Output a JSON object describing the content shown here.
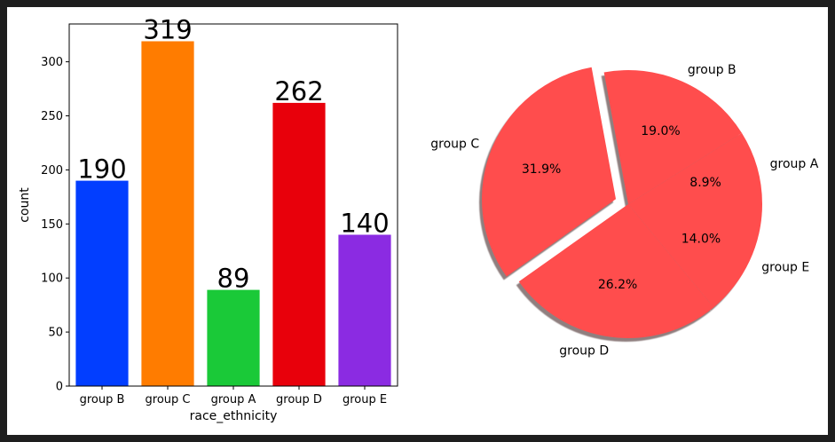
{
  "chart_data": [
    {
      "type": "bar",
      "categories": [
        "group B",
        "group C",
        "group A",
        "group D",
        "group E"
      ],
      "values": [
        190,
        319,
        89,
        262,
        140
      ],
      "data_labels": [
        "190",
        "319",
        "89",
        "262",
        "140"
      ],
      "colors": [
        "#023eff",
        "#ff7c00",
        "#1ac938",
        "#e8000b",
        "#8b2be2"
      ],
      "xlabel": "race_ethnicity",
      "ylabel": "count",
      "ylim": [
        0,
        335
      ],
      "yticks": [
        0,
        50,
        100,
        150,
        200,
        250,
        300
      ],
      "ytick_labels": [
        "0",
        "50",
        "100",
        "150",
        "200",
        "250",
        "300"
      ],
      "grid": false
    },
    {
      "type": "pie",
      "labels": [
        "group A",
        "group B",
        "group C",
        "group D",
        "group E"
      ],
      "values": [
        8.9,
        19.0,
        31.9,
        26.2,
        14.0
      ],
      "pct_labels": [
        "8.9%",
        "19.0%",
        "31.9%",
        "26.2%",
        "14.0%"
      ],
      "exploded": "group C",
      "shadow": true,
      "color": "#ff4d4d"
    }
  ]
}
